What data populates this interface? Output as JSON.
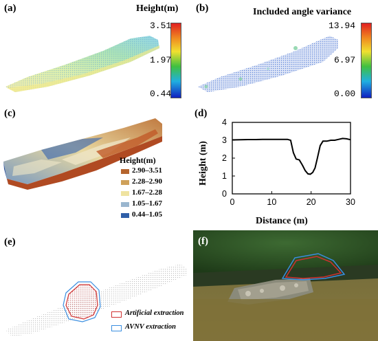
{
  "panel_a": {
    "label": "(a)",
    "colorbar_title": "Height(m)",
    "ticks": [
      "3.51",
      "1.97",
      "0.44"
    ]
  },
  "panel_b": {
    "label": "(b)",
    "colorbar_title": "Included angle variance",
    "ticks": [
      "13.94",
      "6.97",
      "0.00"
    ]
  },
  "panel_c": {
    "label": "(c)",
    "legend_title": "Height(m)",
    "legend": [
      {
        "label": "2.90–3.51",
        "color": "#b5652e"
      },
      {
        "label": "2.28–2.90",
        "color": "#cfa15a"
      },
      {
        "label": "1.67–2.28",
        "color": "#efe3a0"
      },
      {
        "label": "1.05–1.67",
        "color": "#9ab6cf"
      },
      {
        "label": "0.44–1.05",
        "color": "#2f5fa8"
      }
    ]
  },
  "panel_d": {
    "label": "(d)",
    "xlabel": "Distance (m)",
    "ylabel": "Height (m)"
  },
  "panel_e": {
    "label": "(e)",
    "legend": [
      {
        "label": "Artificial extraction",
        "color": "#d03030"
      },
      {
        "label": "AVNV extraction",
        "color": "#3a8ee0"
      }
    ]
  },
  "panel_f": {
    "label": "(f)"
  },
  "chart_data": {
    "type": "line",
    "xlabel": "Distance (m)",
    "ylabel": "Height (m)",
    "xlim": [
      0,
      30
    ],
    "ylim": [
      0,
      4
    ],
    "xticks": [
      "0",
      "10",
      "20",
      "30"
    ],
    "yticks": [
      "0",
      "1",
      "2",
      "3",
      "4"
    ],
    "grid": false,
    "series": [
      {
        "x": [
          0,
          2,
          4,
          6,
          8,
          10,
          12,
          14,
          14.8,
          15.5,
          16.2,
          17,
          17.8,
          18.5,
          19.2,
          19.8,
          20.4,
          21,
          21.6,
          22.3,
          23,
          24,
          25,
          26,
          27,
          28,
          29,
          30
        ],
        "y": [
          3.02,
          3.03,
          3.04,
          3.04,
          3.05,
          3.05,
          3.05,
          3.05,
          3.0,
          2.3,
          1.95,
          1.9,
          1.6,
          1.3,
          1.12,
          1.1,
          1.2,
          1.45,
          2.0,
          2.7,
          2.95,
          2.95,
          3.0,
          3.0,
          3.05,
          3.1,
          3.08,
          3.03
        ],
        "color": "#000000"
      }
    ]
  }
}
